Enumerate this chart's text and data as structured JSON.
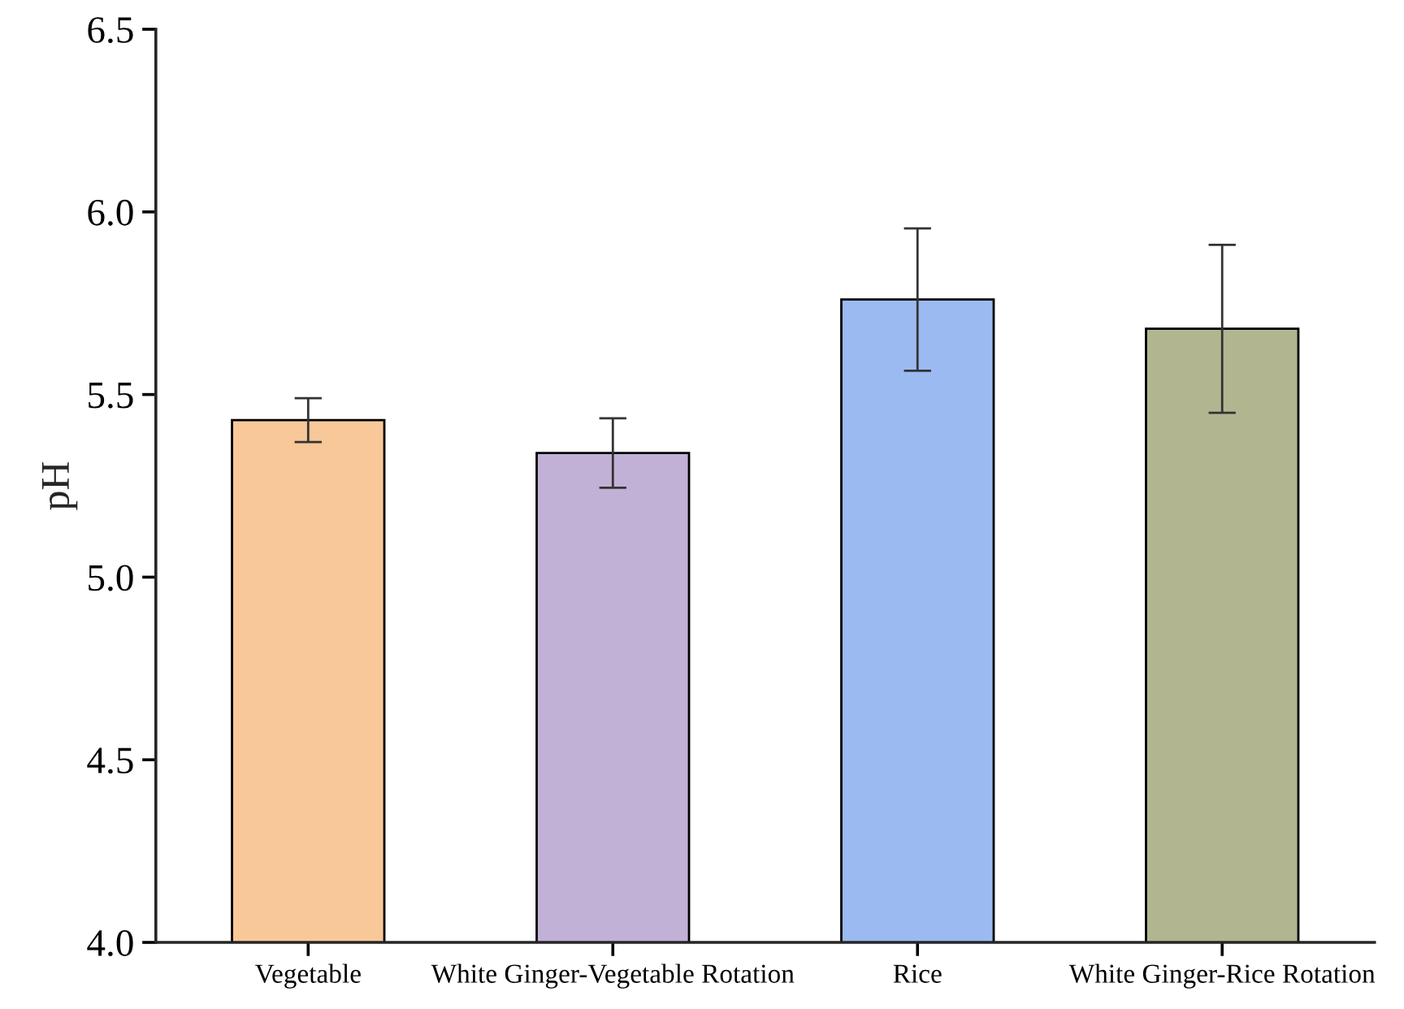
{
  "chart_data": {
    "type": "bar",
    "ylabel": "pH",
    "categories": [
      "Vegetable",
      "White Ginger-Vegetable Rotation",
      "Rice",
      "White Ginger-Rice Rotation"
    ],
    "values": [
      5.43,
      5.34,
      5.76,
      5.68
    ],
    "errors": [
      0.06,
      0.095,
      0.195,
      0.23
    ],
    "colors": [
      "#f9c899",
      "#c1b1d6",
      "#9bbaf2",
      "#b2b690"
    ],
    "ylim": [
      4.0,
      6.5
    ],
    "yticks": [
      {
        "value": 4.0,
        "label": "4.0"
      },
      {
        "value": 4.5,
        "label": "4.5"
      },
      {
        "value": 5.0,
        "label": "5.0"
      },
      {
        "value": 5.5,
        "label": "5.5"
      },
      {
        "value": 6.0,
        "label": "6.0"
      },
      {
        "value": 6.5,
        "label": "6.5"
      }
    ],
    "grid": false,
    "legend": false
  }
}
